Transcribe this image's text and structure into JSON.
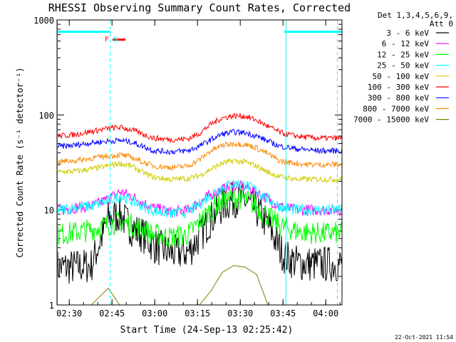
{
  "chart_data": {
    "type": "line",
    "title": "RHESSI Observing Summary Count Rates, Corrected",
    "xlabel": "Start Time (24-Sep-13 02:25:42)",
    "ylabel": "Corrected Count Rate (s⁻¹ detector⁻¹)",
    "yscale": "log",
    "ylim": [
      1,
      1000
    ],
    "xlim_minutes": [
      0,
      100
    ],
    "x_ticks": [
      {
        "label": "02:30",
        "t": 4.3
      },
      {
        "label": "02:45",
        "t": 19.3
      },
      {
        "label": "03:00",
        "t": 34.3
      },
      {
        "label": "03:15",
        "t": 49.3
      },
      {
        "label": "03:30",
        "t": 64.3
      },
      {
        "label": "03:45",
        "t": 79.3
      },
      {
        "label": "04:00",
        "t": 94.3
      }
    ],
    "y_ticks": [
      {
        "label": "1",
        "v": 1
      },
      {
        "label": "10",
        "v": 10
      },
      {
        "label": "100",
        "v": 100
      },
      {
        "label": "1000",
        "v": 1000
      }
    ],
    "legend": {
      "title_lines": [
        "Det 1,3,4,5,6,9,",
        "Att 0"
      ],
      "placement": "right"
    },
    "annotations": [
      {
        "text": "F",
        "t": 17.5,
        "color": "#ff0000"
      },
      {
        "text": "N",
        "t": 20.7,
        "color": "#00ffff"
      }
    ],
    "markers": {
      "night_bars": [
        [
          0,
          18.7
        ],
        [
          79.8,
          100
        ]
      ],
      "flare_bar": [
        19.5,
        24.0
      ],
      "solid_lines": [
        0,
        80.2
      ],
      "dashed_lines": [
        18.7,
        98.4
      ],
      "night_level": 750,
      "flare_level": 620
    },
    "x_time_points": [
      0,
      6,
      12,
      18,
      22,
      26,
      30,
      34,
      40,
      46,
      50,
      54,
      58,
      62,
      66,
      70,
      74,
      78,
      80,
      84,
      88,
      92,
      96,
      100
    ],
    "series": [
      {
        "name": "3 - 6 keV",
        "color": "#000000",
        "values": [
          2.5,
          2.5,
          2.6,
          8,
          9,
          6.5,
          5.5,
          4.2,
          3.5,
          3.6,
          5.2,
          8,
          11,
          13,
          12.5,
          10,
          7,
          4,
          3.2,
          2.8,
          2.7,
          2.7,
          2.7,
          2.7
        ]
      },
      {
        "name": "6 - 12 keV",
        "color": "#ff00ff",
        "values": [
          10,
          10.5,
          11,
          13,
          15.5,
          14,
          12,
          10.5,
          9.5,
          10,
          12,
          14.5,
          16.5,
          18,
          17.5,
          15.5,
          13,
          11,
          10.5,
          10,
          10,
          10,
          10,
          10
        ]
      },
      {
        "name": "12 - 25 keV",
        "color": "#00ff00",
        "values": [
          5.5,
          5.8,
          6.2,
          7,
          7.5,
          7,
          6.3,
          5.5,
          5.2,
          5.5,
          7.5,
          10,
          12.5,
          13.5,
          13,
          11,
          8.5,
          7,
          6.5,
          6,
          5.8,
          5.7,
          5.7,
          5.7
        ]
      },
      {
        "name": "25 - 50 keV",
        "color": "#00ffff",
        "values": [
          10,
          10.5,
          11,
          12.5,
          14,
          12.5,
          11,
          9.8,
          9.2,
          9.5,
          11.5,
          14.5,
          17.5,
          19,
          18.5,
          16,
          13,
          11,
          10.5,
          10,
          10,
          10,
          10,
          10
        ]
      },
      {
        "name": "50 - 100 keV",
        "color": "#cccc00",
        "values": [
          25,
          25.5,
          27,
          29,
          31,
          29,
          25,
          22,
          21,
          21.5,
          23,
          27,
          31,
          33,
          32,
          29,
          25,
          22.5,
          22,
          21,
          21,
          21,
          21,
          21
        ]
      },
      {
        "name": "100 - 300 keV",
        "color": "#ff0000",
        "values": [
          60,
          62,
          67,
          72,
          74,
          70,
          63,
          57,
          55,
          56,
          64,
          80,
          93,
          98,
          97,
          88,
          76,
          66,
          63,
          60,
          58,
          57,
          57,
          57
        ]
      },
      {
        "name": "300 - 800 keV",
        "color": "#0000ff",
        "values": [
          46,
          48,
          51,
          53,
          54,
          52,
          47,
          42,
          41,
          42,
          47,
          55,
          63,
          66,
          65,
          60,
          53,
          47,
          46,
          44,
          43,
          42,
          42,
          42
        ]
      },
      {
        "name": "800 - 7000 keV",
        "color": "#ff8800",
        "values": [
          32,
          33,
          35,
          37,
          38,
          36,
          32,
          29,
          28,
          29,
          34,
          42,
          48,
          50,
          49,
          45,
          39,
          33,
          32,
          31,
          30,
          30,
          30,
          30
        ]
      },
      {
        "name": "7000 - 15000 keV",
        "color": "#808000",
        "values": [
          1,
          1,
          1,
          1.5,
          1,
          1,
          1,
          1,
          1,
          1,
          1,
          1.4,
          2.2,
          2.6,
          2.5,
          2.1,
          1,
          1,
          1,
          1,
          1,
          1,
          1,
          1
        ]
      }
    ]
  },
  "footer": {
    "timestamp": "22-Oct-2021 11:54"
  }
}
